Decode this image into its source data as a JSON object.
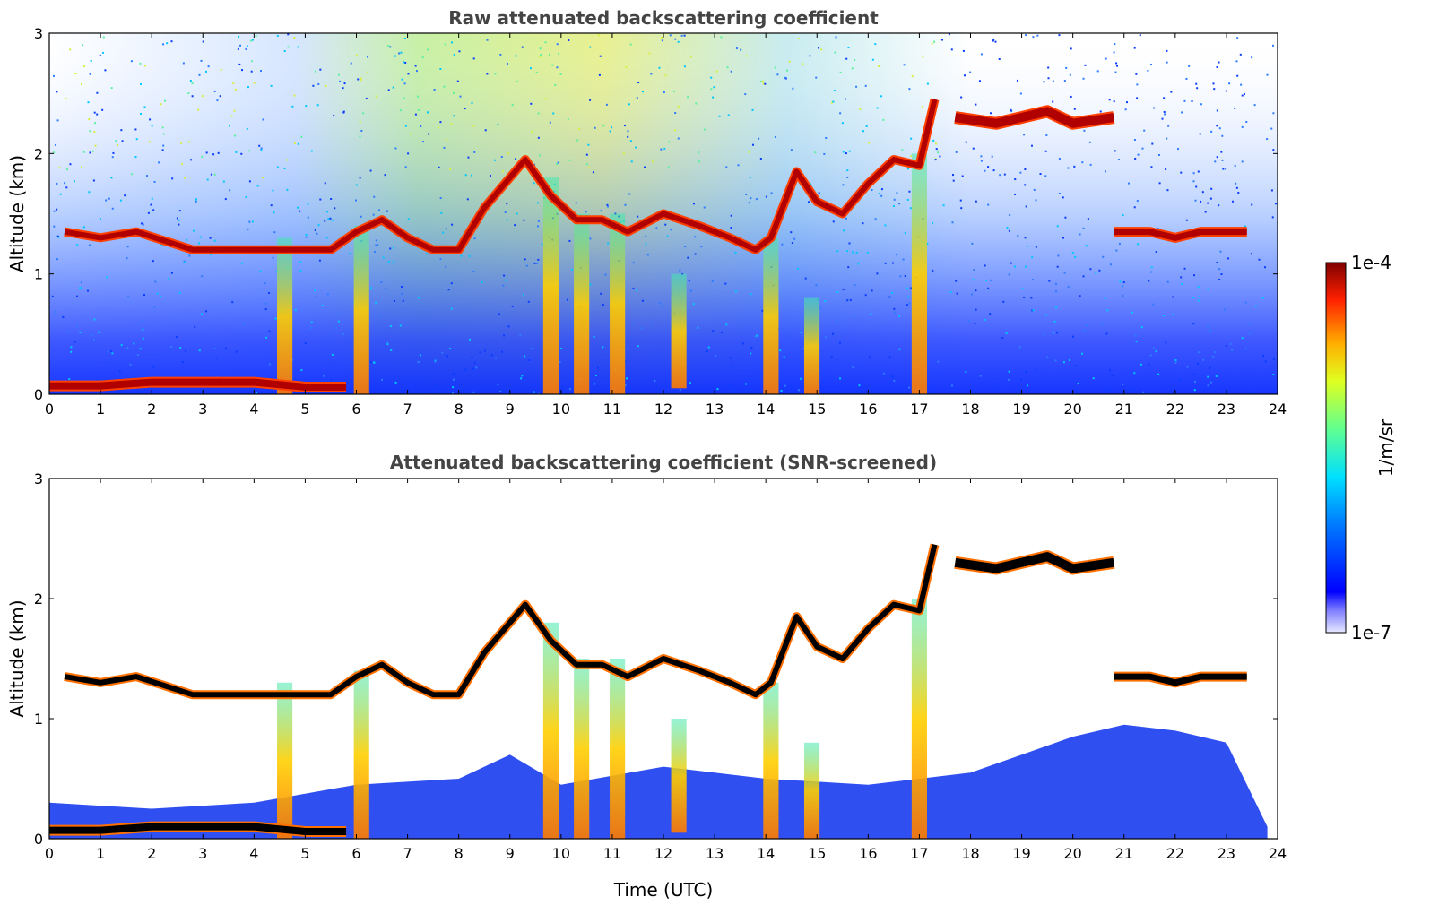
{
  "chart_data": [
    {
      "type": "heatmap",
      "title": "Raw attenuated backscattering coefficient",
      "xlabel": "",
      "ylabel": "Altitude (km)",
      "xlim": [
        0,
        24
      ],
      "ylim": [
        0,
        3
      ],
      "xticks": [
        "0",
        "1",
        "2",
        "3",
        "4",
        "5",
        "6",
        "7",
        "8",
        "9",
        "10",
        "11",
        "12",
        "13",
        "14",
        "15",
        "16",
        "17",
        "18",
        "19",
        "20",
        "21",
        "22",
        "23",
        "24"
      ],
      "yticks": [
        "0",
        "1",
        "2",
        "3"
      ],
      "features": {
        "surface_layer": [
          [
            0,
            0.07
          ],
          [
            1,
            0.07
          ],
          [
            2,
            0.1
          ],
          [
            3,
            0.1
          ],
          [
            4,
            0.1
          ],
          [
            5,
            0.06
          ],
          [
            5.8,
            0.06
          ]
        ],
        "cloud_layer": [
          [
            0.3,
            1.35
          ],
          [
            1,
            1.3
          ],
          [
            1.7,
            1.35
          ],
          [
            2.8,
            1.2
          ],
          [
            3.5,
            1.2
          ],
          [
            4.5,
            1.2
          ],
          [
            5,
            1.2
          ],
          [
            5.5,
            1.2
          ],
          [
            6,
            1.35
          ],
          [
            6.5,
            1.45
          ],
          [
            7,
            1.3
          ],
          [
            7.5,
            1.2
          ],
          [
            8,
            1.2
          ],
          [
            8.5,
            1.55
          ],
          [
            9.3,
            1.95
          ],
          [
            9.8,
            1.65
          ],
          [
            10.3,
            1.45
          ],
          [
            10.8,
            1.45
          ],
          [
            11.3,
            1.35
          ],
          [
            12,
            1.5
          ],
          [
            12.7,
            1.4
          ],
          [
            13.3,
            1.3
          ],
          [
            13.8,
            1.2
          ],
          [
            14.1,
            1.3
          ],
          [
            14.6,
            1.85
          ],
          [
            15,
            1.6
          ],
          [
            15.5,
            1.5
          ],
          [
            16,
            1.75
          ],
          [
            16.5,
            1.95
          ],
          [
            17,
            1.9
          ],
          [
            17.3,
            2.45
          ]
        ],
        "upper_cloud": [
          [
            17.7,
            2.3
          ],
          [
            18.5,
            2.25
          ],
          [
            19,
            2.3
          ],
          [
            19.5,
            2.35
          ],
          [
            20,
            2.25
          ],
          [
            20.8,
            2.3
          ]
        ],
        "late_layer": [
          [
            20.8,
            1.35
          ],
          [
            21.5,
            1.35
          ],
          [
            22,
            1.3
          ],
          [
            22.5,
            1.35
          ],
          [
            23,
            1.35
          ],
          [
            23.4,
            1.35
          ]
        ],
        "plumes": [
          [
            4.6,
            0,
            1.3
          ],
          [
            6.1,
            0,
            1.4
          ],
          [
            9.8,
            0,
            1.8
          ],
          [
            10.4,
            0,
            1.5
          ],
          [
            11.1,
            0,
            1.5
          ],
          [
            12.3,
            0.05,
            1.0
          ],
          [
            14.1,
            0,
            1.3
          ],
          [
            14.9,
            0,
            0.8
          ],
          [
            17.0,
            0,
            2.0
          ]
        ]
      }
    },
    {
      "type": "heatmap",
      "title": "Attenuated backscattering coefficient (SNR-screened)",
      "xlabel": "Time (UTC)",
      "ylabel": "Altitude (km)",
      "xlim": [
        0,
        24
      ],
      "ylim": [
        0,
        3
      ],
      "xticks": [
        "0",
        "1",
        "2",
        "3",
        "4",
        "5",
        "6",
        "7",
        "8",
        "9",
        "10",
        "11",
        "12",
        "13",
        "14",
        "15",
        "16",
        "17",
        "18",
        "19",
        "20",
        "21",
        "22",
        "23",
        "24"
      ],
      "yticks": [
        "0",
        "1",
        "2",
        "3"
      ],
      "features": {
        "surface_layer": [
          [
            0,
            0.07
          ],
          [
            1,
            0.07
          ],
          [
            2,
            0.1
          ],
          [
            3,
            0.1
          ],
          [
            4,
            0.1
          ],
          [
            5,
            0.06
          ],
          [
            5.8,
            0.06
          ]
        ],
        "cloud_layer": [
          [
            0.3,
            1.35
          ],
          [
            1,
            1.3
          ],
          [
            1.7,
            1.35
          ],
          [
            2.8,
            1.2
          ],
          [
            3.5,
            1.2
          ],
          [
            4.5,
            1.2
          ],
          [
            5,
            1.2
          ],
          [
            5.5,
            1.2
          ],
          [
            6,
            1.35
          ],
          [
            6.5,
            1.45
          ],
          [
            7,
            1.3
          ],
          [
            7.5,
            1.2
          ],
          [
            8,
            1.2
          ],
          [
            8.5,
            1.55
          ],
          [
            9.3,
            1.95
          ],
          [
            9.8,
            1.65
          ],
          [
            10.3,
            1.45
          ],
          [
            10.8,
            1.45
          ],
          [
            11.3,
            1.35
          ],
          [
            12,
            1.5
          ],
          [
            12.7,
            1.4
          ],
          [
            13.3,
            1.3
          ],
          [
            13.8,
            1.2
          ],
          [
            14.1,
            1.3
          ],
          [
            14.6,
            1.85
          ],
          [
            15,
            1.6
          ],
          [
            15.5,
            1.5
          ],
          [
            16,
            1.75
          ],
          [
            16.5,
            1.95
          ],
          [
            17,
            1.9
          ],
          [
            17.3,
            2.45
          ]
        ],
        "upper_cloud": [
          [
            17.7,
            2.3
          ],
          [
            18.5,
            2.25
          ],
          [
            19,
            2.3
          ],
          [
            19.5,
            2.35
          ],
          [
            20,
            2.25
          ],
          [
            20.8,
            2.3
          ]
        ],
        "late_layer": [
          [
            20.8,
            1.35
          ],
          [
            21.5,
            1.35
          ],
          [
            22,
            1.3
          ],
          [
            22.5,
            1.35
          ],
          [
            23,
            1.35
          ],
          [
            23.4,
            1.35
          ]
        ],
        "plumes": [
          [
            4.6,
            0,
            1.3
          ],
          [
            6.1,
            0,
            1.4
          ],
          [
            9.8,
            0,
            1.8
          ],
          [
            10.4,
            0,
            1.5
          ],
          [
            11.1,
            0,
            1.5
          ],
          [
            12.3,
            0.05,
            1.0
          ],
          [
            14.1,
            0,
            1.3
          ],
          [
            14.9,
            0,
            0.8
          ],
          [
            17.0,
            0,
            2.0
          ]
        ],
        "boundary_layer_top": [
          [
            0,
            0.3
          ],
          [
            2,
            0.25
          ],
          [
            4,
            0.3
          ],
          [
            6,
            0.45
          ],
          [
            8,
            0.5
          ],
          [
            9,
            0.7
          ],
          [
            10,
            0.45
          ],
          [
            12,
            0.6
          ],
          [
            14,
            0.5
          ],
          [
            16,
            0.45
          ],
          [
            18,
            0.55
          ],
          [
            19,
            0.7
          ],
          [
            20,
            0.85
          ],
          [
            21,
            0.95
          ],
          [
            22,
            0.9
          ],
          [
            23,
            0.8
          ],
          [
            23.8,
            0.1
          ]
        ]
      }
    }
  ],
  "colorbar": {
    "max_label": "1e-4",
    "min_label": "1e-7",
    "unit_label": "1/m/sr",
    "colormap": "jet",
    "scale": "log"
  },
  "colors": {
    "jet_low": "#00007f",
    "jet_high": "#7f0000",
    "cloud_peak_screened": "#000000"
  }
}
